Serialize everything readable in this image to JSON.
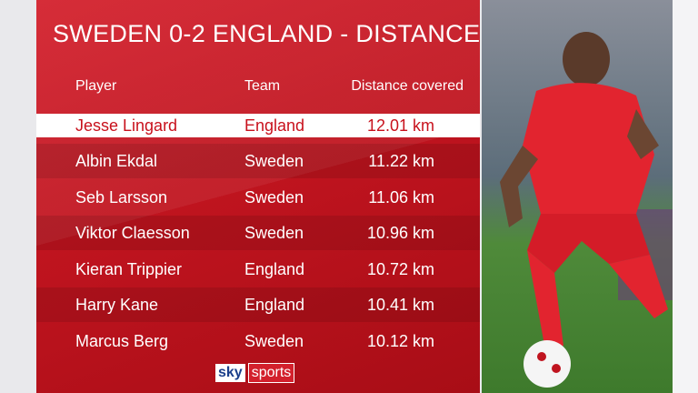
{
  "header": {
    "title": "SWEDEN 0-2 ENGLAND - DISTANCE"
  },
  "table": {
    "columns": [
      "Player",
      "Team",
      "Distance covered"
    ],
    "rows": [
      [
        "Jesse Lingard",
        "England",
        "12.01 km"
      ],
      [
        "Albin Ekdal",
        "Sweden",
        "11.22 km"
      ],
      [
        "Seb Larsson",
        "Sweden",
        "11.06 km"
      ],
      [
        "Viktor Claesson",
        "Sweden",
        "10.96 km"
      ],
      [
        "Kieran Trippier",
        "England",
        "10.72 km"
      ],
      [
        "Harry Kane",
        "England",
        "10.41 km"
      ],
      [
        "Marcus Berg",
        "Sweden",
        "10.12 km"
      ]
    ]
  },
  "logo": {
    "brand": "sky",
    "product": "sports"
  }
}
